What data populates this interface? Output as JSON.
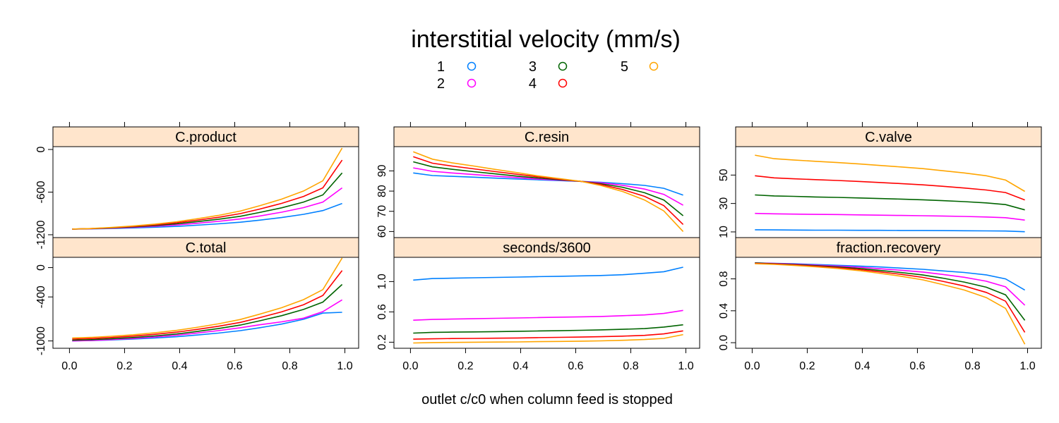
{
  "chart_data": {
    "type": "line",
    "title": "interstitial velocity (mm/s)",
    "xlabel": "outlet c/c0 when column feed is stopped",
    "legend": {
      "placement": "top-center",
      "series": [
        {
          "name": "1",
          "color": "#0080ff"
        },
        {
          "name": "2",
          "color": "#ff00ff"
        },
        {
          "name": "3",
          "color": "#006400"
        },
        {
          "name": "4",
          "color": "#ff0000"
        },
        {
          "name": "5",
          "color": "#ffa500"
        }
      ]
    },
    "x": [
      0.01,
      0.08,
      0.15,
      0.23,
      0.31,
      0.39,
      0.46,
      0.54,
      0.62,
      0.69,
      0.77,
      0.85,
      0.92,
      0.99
    ],
    "xlim": [
      -0.06,
      1.05
    ],
    "xticks": [
      "0.0",
      "0.2",
      "0.4",
      "0.6",
      "0.8",
      "1.0"
    ],
    "xtick_values": [
      0,
      0.2,
      0.4,
      0.6,
      0.8,
      1.0
    ],
    "top_ticks_x": [
      0,
      0.2,
      0.4,
      0.6,
      0.8,
      1.0
    ],
    "panels": [
      {
        "name": "C.product",
        "ylim": [
          -1240,
          40
        ],
        "yticks": [
          "0",
          "-600",
          "-1200"
        ],
        "ytick_values": [
          0,
          -600,
          -1200
        ],
        "series": [
          [
            -1120,
            -1118,
            -1112,
            -1104,
            -1094,
            -1082,
            -1066,
            -1047,
            -1024,
            -995,
            -958,
            -913,
            -860,
            -760
          ],
          [
            -1120,
            -1116,
            -1108,
            -1096,
            -1080,
            -1062,
            -1040,
            -1012,
            -978,
            -936,
            -883,
            -818,
            -740,
            -540
          ],
          [
            -1120,
            -1114,
            -1104,
            -1089,
            -1070,
            -1046,
            -1018,
            -983,
            -940,
            -887,
            -821,
            -740,
            -640,
            -330
          ],
          [
            -1120,
            -1113,
            -1101,
            -1083,
            -1060,
            -1031,
            -997,
            -955,
            -903,
            -839,
            -759,
            -661,
            -540,
            -150
          ],
          [
            -1120,
            -1112,
            -1098,
            -1077,
            -1050,
            -1017,
            -977,
            -928,
            -867,
            -792,
            -699,
            -584,
            -440,
            20
          ]
        ]
      },
      {
        "name": "C.resin",
        "ylim": [
          57,
          102
        ],
        "yticks": [
          "60",
          "70",
          "80",
          "90"
        ],
        "ytick_values": [
          60,
          70,
          80,
          90
        ],
        "series": [
          [
            89.0,
            87.7,
            87.3,
            86.9,
            86.4,
            86.0,
            85.6,
            85.2,
            84.8,
            84.4,
            83.7,
            82.8,
            81.4,
            78.0
          ],
          [
            91.5,
            89.8,
            89.0,
            88.2,
            87.4,
            86.7,
            86.0,
            85.4,
            84.8,
            84.1,
            82.9,
            81.0,
            78.4,
            73.0
          ],
          [
            94.5,
            92.0,
            90.8,
            89.6,
            88.5,
            87.4,
            86.5,
            85.6,
            84.8,
            83.7,
            81.9,
            79.2,
            75.6,
            67.8
          ],
          [
            97.0,
            93.8,
            92.4,
            91.0,
            89.6,
            88.3,
            87.1,
            85.9,
            84.8,
            83.3,
            80.8,
            77.4,
            72.8,
            63.5
          ],
          [
            99.5,
            95.8,
            94.0,
            92.4,
            90.7,
            89.1,
            87.6,
            86.2,
            84.8,
            82.8,
            79.8,
            75.6,
            70.2,
            60.0
          ]
        ]
      },
      {
        "name": "C.valve",
        "ylim": [
          6,
          70
        ],
        "yticks": [
          "10",
          "30",
          "50"
        ],
        "ytick_values": [
          10,
          30,
          50
        ],
        "series": [
          [
            11.5,
            11.4,
            11.3,
            11.2,
            11.2,
            11.1,
            11.1,
            11.0,
            11.0,
            10.9,
            10.8,
            10.7,
            10.6,
            10.1
          ],
          [
            23.0,
            22.7,
            22.5,
            22.3,
            22.2,
            22.0,
            21.8,
            21.6,
            21.4,
            21.2,
            20.9,
            20.5,
            20.0,
            18.3
          ],
          [
            36.0,
            35.3,
            35.0,
            34.6,
            34.3,
            33.9,
            33.5,
            33.1,
            32.6,
            32.0,
            31.3,
            30.4,
            29.2,
            25.5
          ],
          [
            49.5,
            48.0,
            47.4,
            46.8,
            46.2,
            45.5,
            44.8,
            44.0,
            43.1,
            42.1,
            40.9,
            39.5,
            37.7,
            32.5
          ],
          [
            64.0,
            61.5,
            60.6,
            59.7,
            58.8,
            57.8,
            56.8,
            55.7,
            54.5,
            53.1,
            51.5,
            49.5,
            46.5,
            38.5
          ]
        ]
      },
      {
        "name": "C.total",
        "ylim": [
          -1100,
          140
        ],
        "yticks": [
          "0",
          "-400",
          "-1000"
        ],
        "ytick_values": [
          0,
          -400,
          -1000
        ],
        "series": [
          [
            -1000,
            -995,
            -987,
            -975,
            -960,
            -942,
            -920,
            -893,
            -860,
            -820,
            -770,
            -705,
            -620,
            -610
          ],
          [
            -1000,
            -993,
            -982,
            -966,
            -946,
            -922,
            -894,
            -860,
            -820,
            -780,
            -740,
            -690,
            -600,
            -440
          ],
          [
            -990,
            -983,
            -971,
            -954,
            -932,
            -905,
            -872,
            -832,
            -784,
            -726,
            -656,
            -570,
            -470,
            -230
          ],
          [
            -975,
            -967,
            -954,
            -935,
            -910,
            -880,
            -844,
            -800,
            -747,
            -683,
            -604,
            -506,
            -380,
            -40
          ],
          [
            -960,
            -951,
            -937,
            -916,
            -889,
            -856,
            -816,
            -767,
            -708,
            -636,
            -547,
            -437,
            -300,
            130
          ]
        ]
      },
      {
        "name": "seconds/3600",
        "ylim": [
          0.12,
          1.32
        ],
        "yticks": [
          "0.2",
          "0.6",
          "1.0"
        ],
        "ytick_values": [
          0.2,
          0.6,
          1.0
        ],
        "series": [
          [
            1.02,
            1.04,
            1.045,
            1.05,
            1.055,
            1.06,
            1.065,
            1.07,
            1.075,
            1.08,
            1.09,
            1.11,
            1.13,
            1.19
          ],
          [
            0.49,
            0.5,
            0.505,
            0.51,
            0.515,
            0.52,
            0.525,
            0.53,
            0.535,
            0.54,
            0.55,
            0.56,
            0.58,
            0.62
          ],
          [
            0.32,
            0.33,
            0.333,
            0.336,
            0.34,
            0.344,
            0.348,
            0.352,
            0.357,
            0.363,
            0.37,
            0.38,
            0.4,
            0.43
          ],
          [
            0.24,
            0.245,
            0.248,
            0.25,
            0.253,
            0.256,
            0.26,
            0.264,
            0.268,
            0.273,
            0.28,
            0.29,
            0.31,
            0.35
          ],
          [
            0.19,
            0.195,
            0.197,
            0.2,
            0.202,
            0.204,
            0.207,
            0.21,
            0.214,
            0.218,
            0.225,
            0.235,
            0.25,
            0.3
          ]
        ]
      },
      {
        "name": "fraction.recovery",
        "ylim": [
          -0.07,
          1.07
        ],
        "yticks": [
          "0.0",
          "0.4",
          "0.8"
        ],
        "ytick_values": [
          0.0,
          0.4,
          0.8
        ],
        "series": [
          [
            1.0,
            0.995,
            0.99,
            0.98,
            0.97,
            0.96,
            0.95,
            0.935,
            0.92,
            0.9,
            0.88,
            0.85,
            0.8,
            0.66
          ],
          [
            1.0,
            0.993,
            0.985,
            0.973,
            0.96,
            0.945,
            0.928,
            0.908,
            0.885,
            0.856,
            0.82,
            0.77,
            0.7,
            0.47
          ],
          [
            1.0,
            0.99,
            0.98,
            0.966,
            0.95,
            0.93,
            0.907,
            0.88,
            0.848,
            0.81,
            0.76,
            0.695,
            0.6,
            0.28
          ],
          [
            0.995,
            0.987,
            0.975,
            0.959,
            0.94,
            0.917,
            0.89,
            0.857,
            0.818,
            0.77,
            0.71,
            0.63,
            0.52,
            0.13
          ],
          [
            0.99,
            0.982,
            0.969,
            0.951,
            0.93,
            0.903,
            0.871,
            0.833,
            0.787,
            0.73,
            0.66,
            0.565,
            0.43,
            -0.02
          ]
        ]
      }
    ]
  }
}
